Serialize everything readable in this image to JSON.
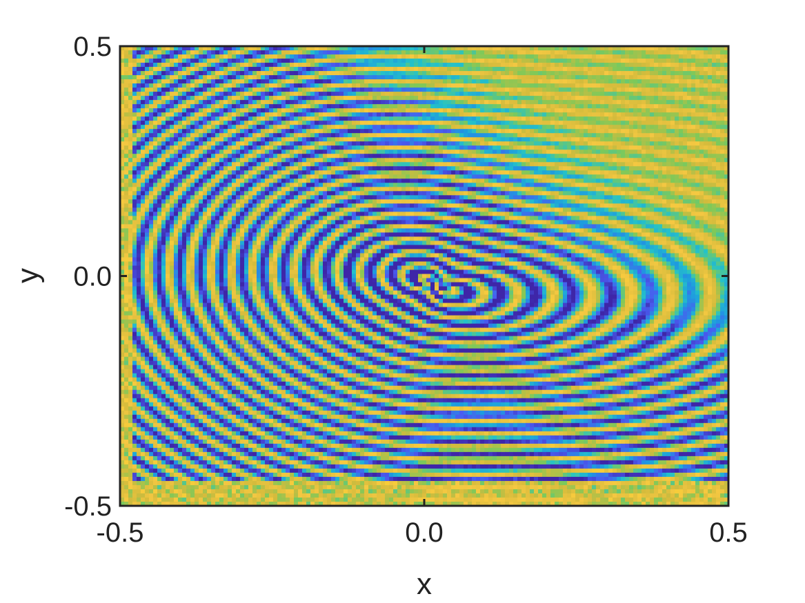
{
  "chart_data": {
    "type": "heatmap",
    "title": "",
    "xlabel": "x",
    "ylabel": "y",
    "xlim": [
      -0.5,
      0.5
    ],
    "ylim": [
      -0.5,
      0.5
    ],
    "x_ticks": [
      "-0.5",
      "0.0",
      "0.5"
    ],
    "y_ticks": [
      "-0.5",
      "0.0",
      "0.5"
    ],
    "x_tick_values": [
      -0.5,
      0.0,
      0.5
    ],
    "y_tick_values": [
      -0.5,
      0.0,
      0.5
    ],
    "colormap": [
      "#3e26a8",
      "#4a5cf0",
      "#1e9ae0",
      "#25c2c8",
      "#7dc95a",
      "#d4bb3c",
      "#f5c842",
      "#f9d724"
    ],
    "pattern": {
      "description_free_params": true,
      "core": [
        0.02,
        -0.02
      ],
      "ridge_period": 0.036,
      "texture": "fingerprint-like concentric ridge pattern"
    }
  }
}
